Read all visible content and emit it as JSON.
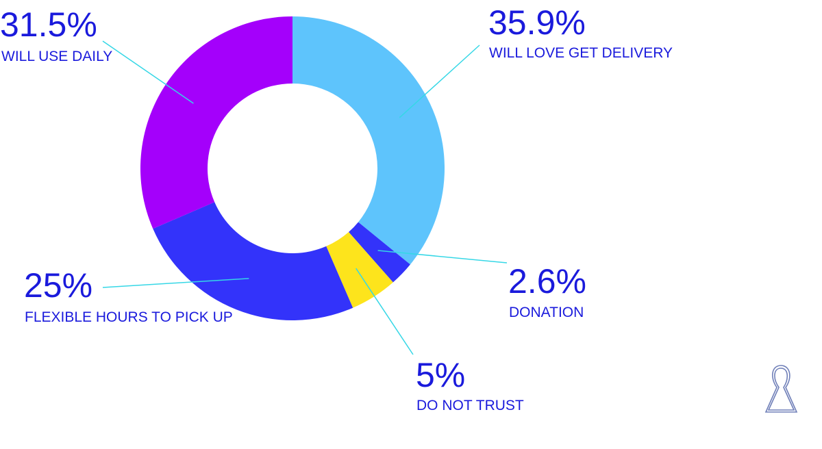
{
  "chart_data": {
    "type": "pie",
    "donut": true,
    "slices": [
      {
        "label": "WILL LOVE GET DELIVERY",
        "value_label": "35.9%",
        "value": 35.9,
        "color": "#5ec4fc"
      },
      {
        "label": "DONATION",
        "value_label": "2.6%",
        "value": 2.6,
        "color": "#3333fa"
      },
      {
        "label": "DO NOT TRUST",
        "value_label": "5%",
        "value": 5,
        "color": "#fde41c"
      },
      {
        "label": "FLEXIBLE HOURS TO PICK UP",
        "value_label": "25%",
        "value": 25,
        "color": "#3333fa"
      },
      {
        "label": "WILL USE DAILY",
        "value_label": "31.5%",
        "value": 31.5,
        "color": "#a400fb"
      }
    ],
    "leader_line_color": "#35d7e6",
    "text_color": "#1a1adc"
  },
  "logo": {
    "icon": "keyhole-logo-icon"
  }
}
